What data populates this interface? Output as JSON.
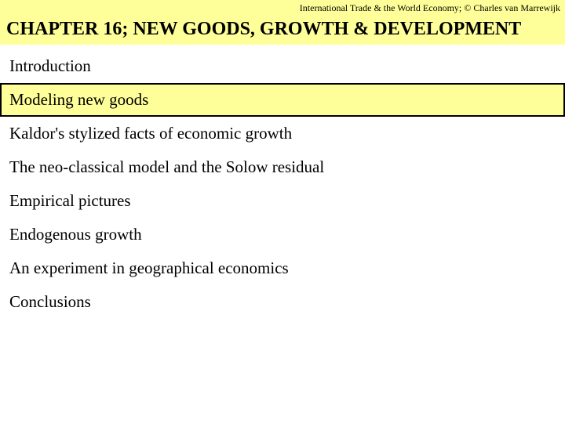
{
  "header": {
    "text": "International Trade & the World Economy;  © Charles van Marrewijk"
  },
  "chapter": {
    "title": "CHAPTER 16; NEW GOODS, GROWTH & DEVELOPMENT"
  },
  "toc": {
    "items": [
      {
        "label": "Introduction",
        "highlighted": false
      },
      {
        "label": "Modeling new goods",
        "highlighted": true
      },
      {
        "label": "Kaldor's stylized facts of economic growth",
        "highlighted": false
      },
      {
        "label": "The neo-classical model and the Solow residual",
        "highlighted": false
      },
      {
        "label": "Empirical pictures",
        "highlighted": false
      },
      {
        "label": "Endogenous growth",
        "highlighted": false
      },
      {
        "label": "An experiment in geographical economics",
        "highlighted": false
      },
      {
        "label": "Conclusions",
        "highlighted": false
      }
    ]
  },
  "colors": {
    "highlight_bg": "#ffff99",
    "page_bg": "#ffffff",
    "text": "#000000",
    "border": "#000000"
  }
}
